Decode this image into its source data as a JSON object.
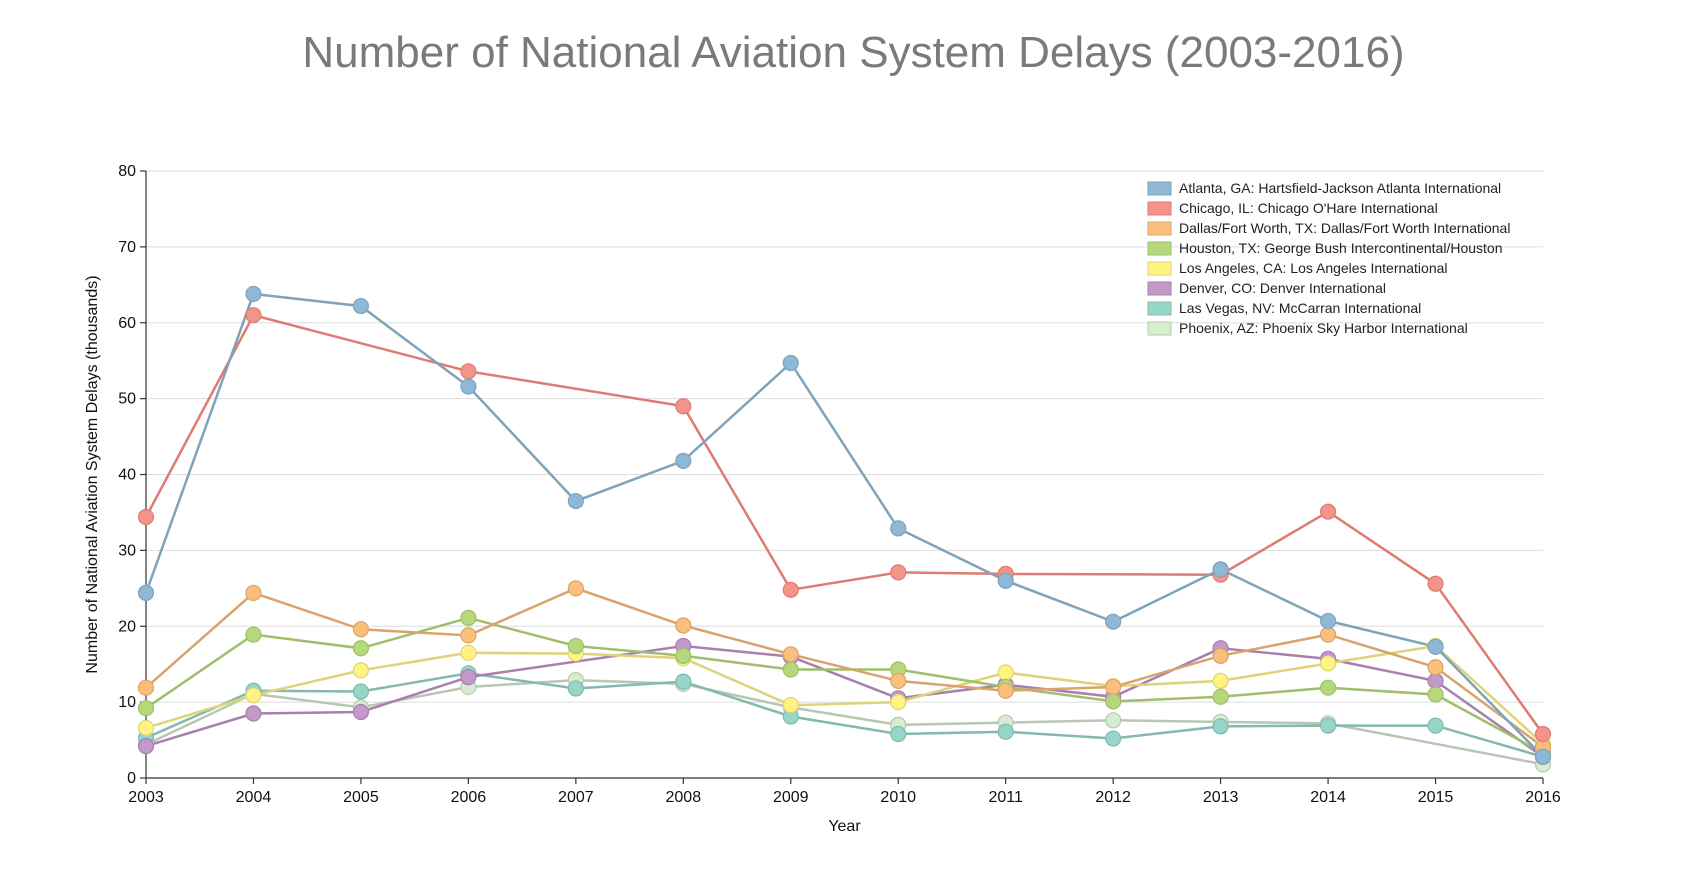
{
  "chart_data": {
    "type": "line",
    "title": "Number of National Aviation System Delays (2003-2016)",
    "xlabel": "Year",
    "ylabel": "Number of National Aviation System Delays (thousands)",
    "ylim": [
      0,
      80
    ],
    "yticks": [
      0,
      10,
      20,
      30,
      40,
      50,
      60,
      70,
      80
    ],
    "x": [
      2003,
      2004,
      2005,
      2006,
      2007,
      2008,
      2009,
      2010,
      2011,
      2012,
      2013,
      2014,
      2015,
      2016
    ],
    "grid": "horizontal",
    "legend_position": "top-right",
    "series": [
      {
        "name": "Atlanta, GA: Hartsfield-Jackson Atlanta International",
        "fill": "#8fb8d6",
        "line": "#7ea3ba",
        "values": [
          24.4,
          63.8,
          62.2,
          51.6,
          36.5,
          41.8,
          54.7,
          32.9,
          26.0,
          20.6,
          27.5,
          20.7,
          17.3,
          2.8
        ]
      },
      {
        "name": "Chicago, IL: Chicago O'Hare International",
        "fill": "#f4938a",
        "line": "#de7b72",
        "values": [
          34.4,
          61.0,
          null,
          53.6,
          null,
          49.0,
          24.8,
          27.1,
          26.9,
          null,
          26.8,
          35.1,
          25.6,
          5.8
        ]
      },
      {
        "name": "Dallas/Fort Worth, TX: Dallas/Fort Worth International",
        "fill": "#fbbf7c",
        "line": "#d9a46b",
        "values": [
          11.9,
          24.4,
          19.6,
          18.8,
          25.0,
          20.1,
          16.3,
          12.8,
          11.5,
          12.0,
          16.1,
          18.9,
          14.6,
          4.1
        ]
      },
      {
        "name": "Houston, TX: George Bush Intercontinental/Houston",
        "fill": "#b5d97a",
        "line": "#a0be6b",
        "values": [
          9.2,
          18.9,
          17.1,
          21.1,
          17.4,
          16.1,
          14.3,
          14.3,
          12.0,
          10.1,
          10.7,
          11.9,
          11.0,
          3.3
        ]
      },
      {
        "name": "Los Angeles, CA: Los Angeles International",
        "fill": "#fff384",
        "line": "#ddd47a",
        "values": [
          6.6,
          10.9,
          14.2,
          16.5,
          16.4,
          15.8,
          9.6,
          10.0,
          13.9,
          12.1,
          12.8,
          15.1,
          17.4,
          4.5
        ]
      },
      {
        "name": "Denver, CO: Denver International",
        "fill": "#c399c9",
        "line": "#a87fad",
        "values": [
          4.2,
          8.5,
          8.7,
          13.3,
          null,
          17.4,
          16.0,
          10.5,
          12.3,
          10.7,
          17.1,
          15.7,
          12.8,
          2.8
        ]
      },
      {
        "name": "Las Vegas, NV: McCarran International",
        "fill": "#96d6c8",
        "line": "#84b9ad",
        "values": [
          5.3,
          11.5,
          11.4,
          13.8,
          11.8,
          12.7,
          8.1,
          5.8,
          6.1,
          5.2,
          6.8,
          6.9,
          6.9,
          2.8
        ]
      },
      {
        "name": "Phoenix, AZ: Phoenix Sky Harbor International",
        "fill": "#d6edcf",
        "line": "#b8c7b2",
        "values": [
          4.4,
          11.1,
          9.3,
          12.0,
          12.9,
          12.4,
          9.3,
          7.0,
          7.3,
          7.6,
          7.4,
          7.2,
          null,
          1.8
        ]
      }
    ]
  }
}
